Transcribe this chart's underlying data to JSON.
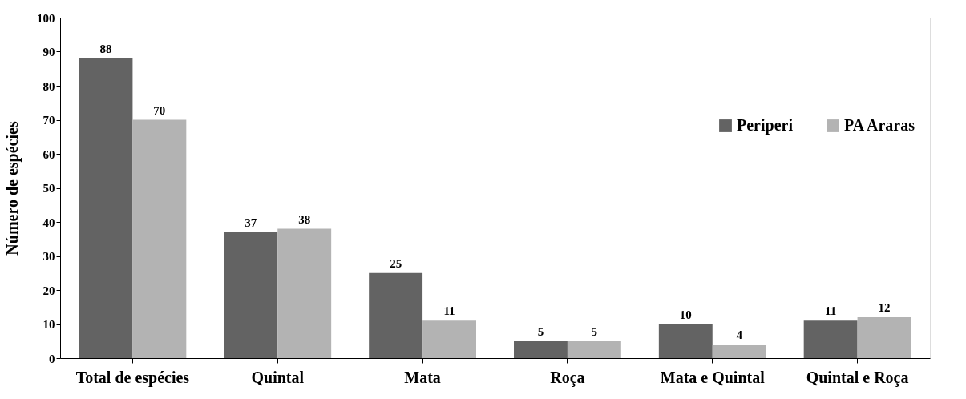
{
  "chart_data": {
    "type": "bar",
    "ylabel": "Número de espécies",
    "categories": [
      "Total de espécies",
      "Quintal",
      "Mata",
      "Roça",
      "Mata e Quintal",
      "Quintal e Roça"
    ],
    "series": [
      {
        "name": "Periperi",
        "color": "#636363",
        "values": [
          88,
          37,
          25,
          5,
          10,
          11
        ]
      },
      {
        "name": "PA Araras",
        "color": "#b3b3b3",
        "values": [
          70,
          38,
          11,
          5,
          4,
          12
        ]
      }
    ],
    "ylim": [
      0,
      100
    ],
    "yticks": [
      0,
      10,
      20,
      30,
      40,
      50,
      60,
      70,
      80,
      90,
      100
    ],
    "grid": false,
    "legend": "right",
    "data_labels": true
  }
}
